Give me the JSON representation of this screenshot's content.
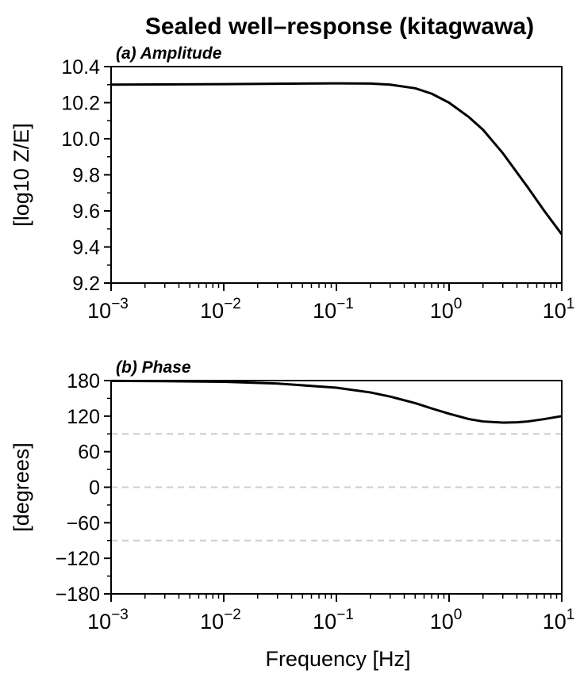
{
  "title": "Sealed well–response (kitagwawa)",
  "xlabel": "Frequency [Hz]",
  "colors": {
    "line": "#000000",
    "reference": "#cccccc",
    "axis": "#000000"
  },
  "chart_data": [
    {
      "type": "line",
      "panel_label": "(a) Amplitude",
      "ylabel": "[log10 Z/E]",
      "xscale": "log",
      "xlim": [
        0.001,
        10
      ],
      "ylim": [
        9.2,
        10.4
      ],
      "x_ticks": [
        {
          "value": 0.001,
          "base": "10",
          "exp": "−3"
        },
        {
          "value": 0.01,
          "base": "10",
          "exp": "−2"
        },
        {
          "value": 0.1,
          "base": "10",
          "exp": "−1"
        },
        {
          "value": 1,
          "base": "10",
          "exp": "0"
        },
        {
          "value": 10,
          "base": "10",
          "exp": "1"
        }
      ],
      "y_ticks": [
        {
          "value": 9.2,
          "label": "9.2"
        },
        {
          "value": 9.4,
          "label": "9.4"
        },
        {
          "value": 9.6,
          "label": "9.6"
        },
        {
          "value": 9.8,
          "label": "9.8"
        },
        {
          "value": 10.0,
          "label": "10.0"
        },
        {
          "value": 10.2,
          "label": "10.2"
        },
        {
          "value": 10.4,
          "label": "10.4"
        }
      ],
      "y_minor_step": 0.1,
      "reference_lines": [],
      "series": [
        {
          "x": [
            0.001,
            0.01,
            0.05,
            0.1,
            0.2,
            0.3,
            0.5,
            0.7,
            1.0,
            1.5,
            2.0,
            3.0,
            5.0,
            7.0,
            10.0
          ],
          "y": [
            10.3,
            10.303,
            10.306,
            10.307,
            10.306,
            10.3,
            10.28,
            10.25,
            10.2,
            10.12,
            10.05,
            9.92,
            9.73,
            9.6,
            9.47
          ]
        }
      ]
    },
    {
      "type": "line",
      "panel_label": "(b) Phase",
      "ylabel": "[degrees]",
      "xscale": "log",
      "xlim": [
        0.001,
        10
      ],
      "ylim": [
        -180,
        180
      ],
      "x_ticks": [
        {
          "value": 0.001,
          "base": "10",
          "exp": "−3"
        },
        {
          "value": 0.01,
          "base": "10",
          "exp": "−2"
        },
        {
          "value": 0.1,
          "base": "10",
          "exp": "−1"
        },
        {
          "value": 1,
          "base": "10",
          "exp": "0"
        },
        {
          "value": 10,
          "base": "10",
          "exp": "1"
        }
      ],
      "y_ticks": [
        {
          "value": 180,
          "label": "180"
        },
        {
          "value": 120,
          "label": "120"
        },
        {
          "value": 60,
          "label": "60"
        },
        {
          "value": 0,
          "label": "0"
        },
        {
          "value": -60,
          "label": "−60"
        },
        {
          "value": -120,
          "label": "−120"
        },
        {
          "value": -180,
          "label": "−180"
        }
      ],
      "y_minor_step": 30,
      "reference_lines": [
        180,
        90,
        0,
        -90,
        -180
      ],
      "series": [
        {
          "x": [
            0.001,
            0.003,
            0.01,
            0.03,
            0.1,
            0.2,
            0.3,
            0.5,
            0.7,
            1.0,
            1.5,
            2.0,
            3.0,
            4.0,
            5.0,
            7.0,
            10.0
          ],
          "y": [
            179.5,
            179,
            178,
            175,
            168,
            160,
            153,
            142,
            133,
            124,
            115,
            111,
            109,
            109.5,
            111,
            115,
            120
          ]
        }
      ]
    }
  ]
}
